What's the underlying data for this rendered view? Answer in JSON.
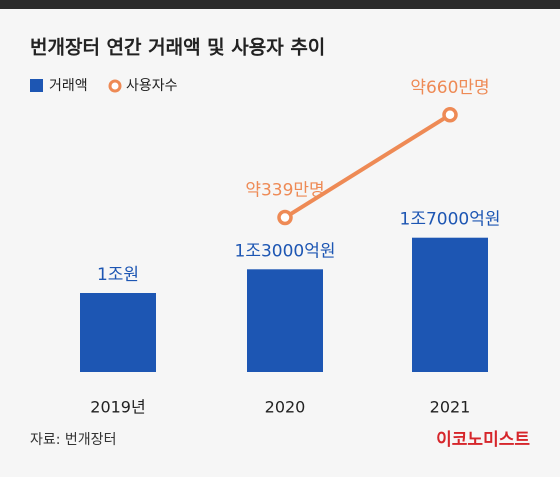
{
  "chart_data": {
    "type": "bar",
    "title": "번개장터 연간 거래액 및 사용자 추이",
    "categories": [
      "2019년",
      "2020",
      "2021"
    ],
    "series": [
      {
        "name": "거래액",
        "type": "bar",
        "color": "#1d56b3",
        "values": [
          10000,
          13000,
          17000
        ],
        "value_labels": [
          "1조원",
          "1조3000억원",
          "1조7000억원"
        ]
      },
      {
        "name": "사용자수",
        "type": "line",
        "color": "#ee8a55",
        "values": [
          null,
          339,
          660
        ],
        "value_labels": [
          null,
          "약339만명",
          "약660만명"
        ]
      }
    ],
    "source": "자료: 번개장터",
    "brand": "이코노미스트"
  }
}
